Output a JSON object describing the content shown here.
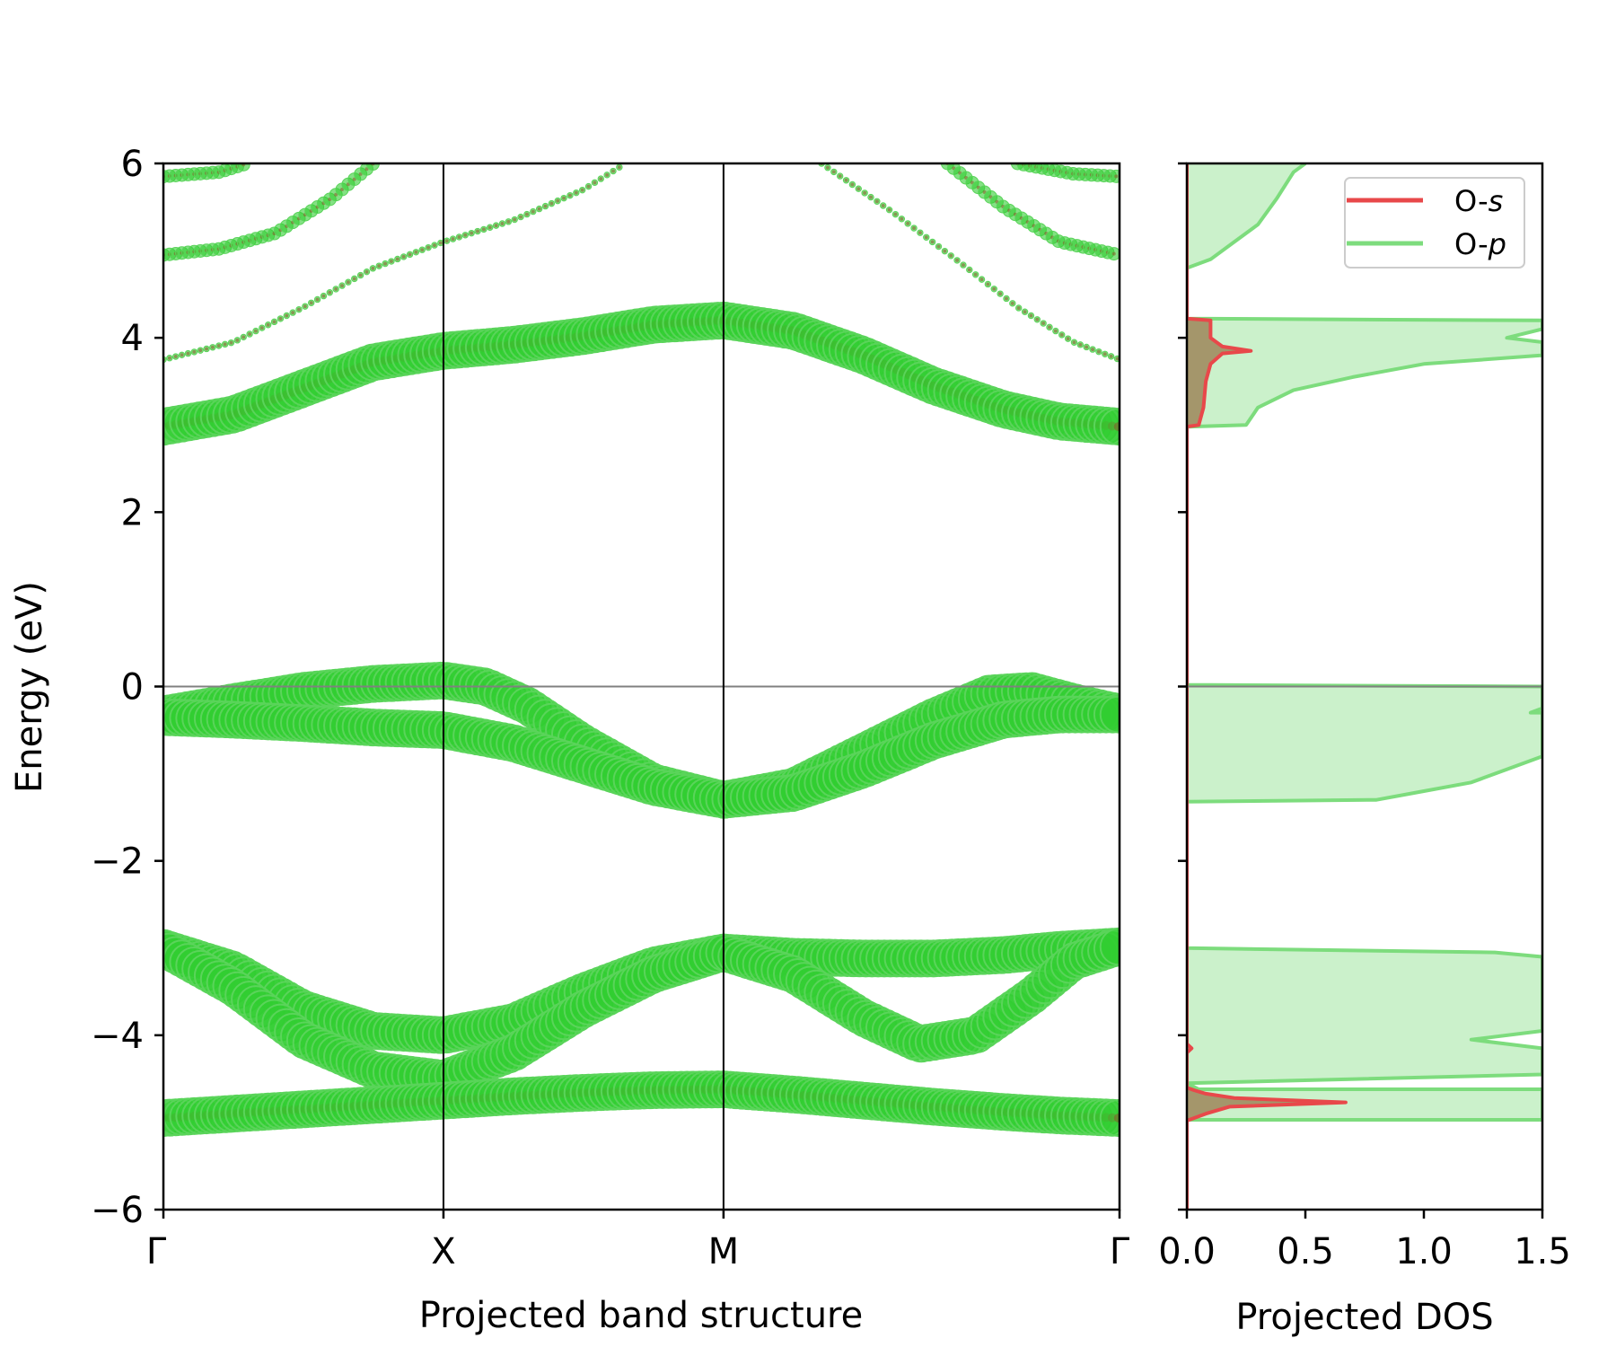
{
  "chart_data": [
    {
      "type": "scatter",
      "subtype": "projected-band-structure",
      "title": "",
      "xlabel": "Projected band structure",
      "ylabel": "Energy (eV)",
      "ylim": [
        -6,
        6
      ],
      "yticks": [
        {
          "value": -6,
          "label": "−6"
        },
        {
          "value": -4,
          "label": "−4"
        },
        {
          "value": -2,
          "label": "−2"
        },
        {
          "value": 0,
          "label": "0"
        },
        {
          "value": 2,
          "label": "2"
        },
        {
          "value": 4,
          "label": "4"
        },
        {
          "value": 6,
          "label": "6"
        }
      ],
      "kpoints": [
        {
          "label": "Γ",
          "k": 0
        },
        {
          "label": "X",
          "k": 1
        },
        {
          "label": "M",
          "k": 2
        },
        {
          "label": "Γ",
          "k": 3.414
        }
      ],
      "fermi_level": 0,
      "colors": {
        "o_p": "#32cd32",
        "o_s": "#8b5a2b",
        "o_p_edge": "#5ad45a"
      },
      "bands": [
        {
          "name": "conduction-low",
          "weight": 1.0,
          "points": [
            [
              0,
              2.98
            ],
            [
              0.25,
              3.12
            ],
            [
              0.5,
              3.42
            ],
            [
              0.75,
              3.72
            ],
            [
              1,
              3.85
            ],
            [
              1.25,
              3.92
            ],
            [
              1.5,
              4.02
            ],
            [
              1.75,
              4.15
            ],
            [
              2,
              4.2
            ],
            [
              2.25,
              4.08
            ],
            [
              2.5,
              3.8
            ],
            [
              2.75,
              3.45
            ],
            [
              3.0,
              3.18
            ],
            [
              3.2,
              3.04
            ],
            [
              3.414,
              2.98
            ]
          ]
        },
        {
          "name": "conduction-thin",
          "weight": 0.12,
          "points": [
            [
              0,
              3.75
            ],
            [
              0.25,
              3.95
            ],
            [
              0.5,
              4.35
            ],
            [
              0.75,
              4.8
            ],
            [
              1,
              5.1
            ],
            [
              1.25,
              5.35
            ],
            [
              1.5,
              5.7
            ],
            [
              1.65,
              6.0
            ]
          ]
        },
        {
          "name": "conduction-thin-2",
          "weight": 0.12,
          "points": [
            [
              2.35,
              6.0
            ],
            [
              2.6,
              5.45
            ],
            [
              2.85,
              4.85
            ],
            [
              3.05,
              4.35
            ],
            [
              3.25,
              3.95
            ],
            [
              3.414,
              3.75
            ]
          ]
        },
        {
          "name": "conduction-upper-1",
          "weight": 0.3,
          "points": [
            [
              0,
              4.95
            ],
            [
              0.2,
              5.02
            ],
            [
              0.4,
              5.2
            ],
            [
              0.6,
              5.6
            ],
            [
              0.75,
              6.0
            ]
          ]
        },
        {
          "name": "conduction-upper-2",
          "weight": 0.3,
          "points": [
            [
              2.8,
              6.0
            ],
            [
              3.0,
              5.5
            ],
            [
              3.2,
              5.1
            ],
            [
              3.414,
              4.95
            ]
          ]
        },
        {
          "name": "conduction-upper-3",
          "weight": 0.3,
          "points": [
            [
              0,
              5.85
            ],
            [
              0.2,
              5.9
            ],
            [
              0.3,
              6.0
            ]
          ]
        },
        {
          "name": "conduction-upper-4",
          "weight": 0.3,
          "points": [
            [
              3.05,
              6.0
            ],
            [
              3.25,
              5.88
            ],
            [
              3.414,
              5.85
            ]
          ]
        },
        {
          "name": "valence-top-1",
          "weight": 1.0,
          "points": [
            [
              0,
              -0.32
            ],
            [
              0.25,
              -0.18
            ],
            [
              0.5,
              -0.05
            ],
            [
              0.75,
              0.03
            ],
            [
              1,
              0.07
            ],
            [
              1.15,
              0.0
            ],
            [
              1.3,
              -0.22
            ],
            [
              1.5,
              -0.65
            ],
            [
              1.75,
              -1.1
            ],
            [
              2,
              -1.3
            ],
            [
              2.25,
              -1.15
            ],
            [
              2.5,
              -0.75
            ],
            [
              2.75,
              -0.35
            ],
            [
              2.95,
              -0.08
            ],
            [
              3.1,
              -0.05
            ],
            [
              3.25,
              -0.18
            ],
            [
              3.414,
              -0.3
            ]
          ]
        },
        {
          "name": "valence-top-2",
          "weight": 1.0,
          "points": [
            [
              0,
              -0.35
            ],
            [
              0.25,
              -0.38
            ],
            [
              0.5,
              -0.42
            ],
            [
              0.75,
              -0.47
            ],
            [
              1,
              -0.5
            ],
            [
              1.25,
              -0.65
            ],
            [
              1.5,
              -0.9
            ],
            [
              1.75,
              -1.15
            ],
            [
              2,
              -1.3
            ],
            [
              2.25,
              -1.22
            ],
            [
              2.5,
              -0.95
            ],
            [
              2.75,
              -0.62
            ],
            [
              3.0,
              -0.38
            ],
            [
              3.2,
              -0.32
            ],
            [
              3.414,
              -0.32
            ]
          ]
        },
        {
          "name": "valence-mid-1",
          "weight": 1.0,
          "points": [
            [
              0,
              -3.0
            ],
            [
              0.25,
              -3.25
            ],
            [
              0.5,
              -3.7
            ],
            [
              0.75,
              -3.95
            ],
            [
              1,
              -4.0
            ],
            [
              1.25,
              -3.85
            ],
            [
              1.5,
              -3.5
            ],
            [
              1.75,
              -3.2
            ],
            [
              2,
              -3.05
            ],
            [
              2.25,
              -3.1
            ],
            [
              2.5,
              -3.12
            ],
            [
              2.75,
              -3.12
            ],
            [
              3.0,
              -3.08
            ],
            [
              3.2,
              -3.02
            ],
            [
              3.414,
              -2.98
            ]
          ]
        },
        {
          "name": "valence-mid-2",
          "weight": 1.0,
          "points": [
            [
              0,
              -3.0
            ],
            [
              0.25,
              -3.45
            ],
            [
              0.5,
              -4.05
            ],
            [
              0.75,
              -4.4
            ],
            [
              1,
              -4.5
            ],
            [
              1.25,
              -4.2
            ],
            [
              1.5,
              -3.7
            ],
            [
              1.75,
              -3.3
            ],
            [
              2,
              -3.05
            ],
            [
              2.25,
              -3.3
            ],
            [
              2.5,
              -3.8
            ],
            [
              2.7,
              -4.1
            ],
            [
              2.9,
              -4.0
            ],
            [
              3.1,
              -3.55
            ],
            [
              3.25,
              -3.15
            ],
            [
              3.414,
              -2.98
            ]
          ]
        },
        {
          "name": "valence-bottom",
          "weight": 1.0,
          "points": [
            [
              0,
              -4.95
            ],
            [
              0.25,
              -4.9
            ],
            [
              0.5,
              -4.85
            ],
            [
              0.75,
              -4.8
            ],
            [
              1,
              -4.75
            ],
            [
              1.25,
              -4.7
            ],
            [
              1.5,
              -4.66
            ],
            [
              1.75,
              -4.63
            ],
            [
              2,
              -4.62
            ],
            [
              2.25,
              -4.68
            ],
            [
              2.5,
              -4.75
            ],
            [
              2.75,
              -4.82
            ],
            [
              3.0,
              -4.88
            ],
            [
              3.2,
              -4.92
            ],
            [
              3.414,
              -4.95
            ]
          ]
        }
      ]
    },
    {
      "type": "area",
      "subtype": "projected-dos",
      "title": "",
      "xlabel": "Projected DOS",
      "ylabel": "",
      "xlim": [
        0,
        1.5
      ],
      "ylim": [
        -6,
        6
      ],
      "xticks": [
        {
          "value": 0,
          "label": "0.0"
        },
        {
          "value": 0.5,
          "label": "0.5"
        },
        {
          "value": 1.0,
          "label": "1.0"
        },
        {
          "value": 1.5,
          "label": "1.5"
        }
      ],
      "legend_position": "top-right",
      "series": [
        {
          "name": "O-s",
          "legend_label": "O-",
          "legend_italic": "s",
          "color": "#e8484a",
          "fill": "#8b5a2b",
          "points": [
            [
              0.0,
              -6
            ],
            [
              0.0,
              -4.98
            ],
            [
              0.03,
              -4.95
            ],
            [
              0.08,
              -4.9
            ],
            [
              0.18,
              -4.82
            ],
            [
              0.67,
              -4.77
            ],
            [
              0.2,
              -4.72
            ],
            [
              0.08,
              -4.67
            ],
            [
              0.03,
              -4.63
            ],
            [
              0.0,
              -4.6
            ],
            [
              0.0,
              -4.2
            ],
            [
              0.02,
              -4.15
            ],
            [
              0.0,
              -4.1
            ],
            [
              0.0,
              2.98
            ],
            [
              0.05,
              3.0
            ],
            [
              0.07,
              3.2
            ],
            [
              0.08,
              3.5
            ],
            [
              0.1,
              3.7
            ],
            [
              0.15,
              3.82
            ],
            [
              0.27,
              3.85
            ],
            [
              0.15,
              3.9
            ],
            [
              0.1,
              4.0
            ],
            [
              0.1,
              4.2
            ],
            [
              0.0,
              4.22
            ],
            [
              0.0,
              6.0
            ]
          ]
        },
        {
          "name": "O-p",
          "legend_label": "O-",
          "legend_italic": "p",
          "color": "#7ddc7d",
          "fill": "#c8f0c8",
          "points": [
            [
              0.0,
              -6
            ],
            [
              0.0,
              -4.97
            ],
            [
              1.5,
              -4.97
            ],
            [
              1.5,
              -4.62
            ],
            [
              0.05,
              -4.62
            ],
            [
              0.0,
              -4.55
            ],
            [
              1.5,
              -4.45
            ],
            [
              1.5,
              -4.15
            ],
            [
              1.2,
              -4.05
            ],
            [
              1.5,
              -3.95
            ],
            [
              1.5,
              -3.1
            ],
            [
              1.3,
              -3.05
            ],
            [
              0.0,
              -3.0
            ],
            [
              0.0,
              -1.32
            ],
            [
              0.8,
              -1.3
            ],
            [
              1.0,
              -1.2
            ],
            [
              1.2,
              -1.1
            ],
            [
              1.35,
              -0.95
            ],
            [
              1.5,
              -0.8
            ],
            [
              1.5,
              -0.3
            ],
            [
              1.45,
              -0.3
            ],
            [
              1.5,
              -0.25
            ],
            [
              1.5,
              0.0
            ],
            [
              0.0,
              0.02
            ],
            [
              0.0,
              2.98
            ],
            [
              0.25,
              3.0
            ],
            [
              0.3,
              3.2
            ],
            [
              0.45,
              3.4
            ],
            [
              0.7,
              3.55
            ],
            [
              1.0,
              3.7
            ],
            [
              1.5,
              3.8
            ],
            [
              1.5,
              3.95
            ],
            [
              1.35,
              4.0
            ],
            [
              1.5,
              4.1
            ],
            [
              1.5,
              4.2
            ],
            [
              0.0,
              4.22
            ],
            [
              0.0,
              4.8
            ],
            [
              0.1,
              4.9
            ],
            [
              0.2,
              5.1
            ],
            [
              0.3,
              5.3
            ],
            [
              0.38,
              5.6
            ],
            [
              0.45,
              5.9
            ],
            [
              0.5,
              6.0
            ]
          ]
        }
      ]
    }
  ]
}
